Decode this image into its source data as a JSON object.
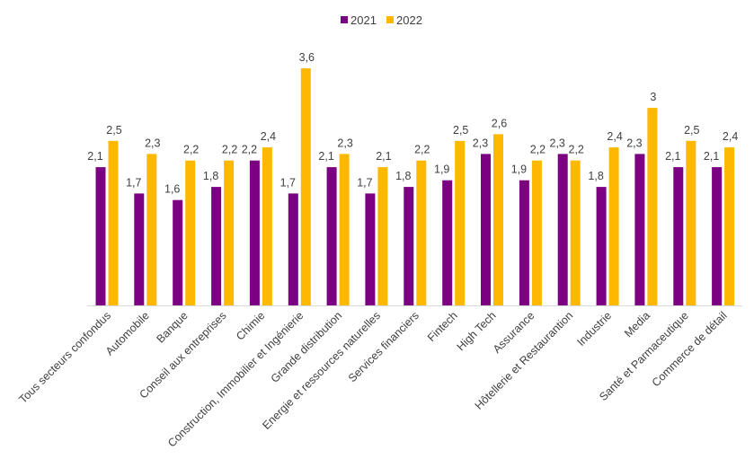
{
  "chart_data": {
    "type": "bar",
    "title": "",
    "xlabel": "",
    "ylabel": "",
    "ylim": [
      0,
      3.6
    ],
    "grid": false,
    "legend_position": "top-center",
    "decimal_separator": ",",
    "categories": [
      "Tous secteurs confondus",
      "Automobile",
      "Banque",
      "Conseil aux entreprises",
      "Chimie",
      "Construction, Immobilier et Ingénierie",
      "Grande distribution",
      "Energie et ressources naturelles",
      "Services financiers",
      "Fintech",
      "High Tech",
      "Assurance",
      "Hôtellerie et Restaurantion",
      "Industrie",
      "Media",
      "Santé et Parmaceutique",
      "Commerce de détail"
    ],
    "series": [
      {
        "name": "2021",
        "color": "#7B0082",
        "values": [
          2.1,
          1.7,
          1.6,
          1.8,
          2.2,
          1.7,
          2.1,
          1.7,
          1.8,
          1.9,
          2.3,
          1.9,
          2.3,
          1.8,
          2.3,
          2.1,
          2.1
        ]
      },
      {
        "name": "2022",
        "color": "#FFB800",
        "values": [
          2.5,
          2.3,
          2.2,
          2.2,
          2.4,
          3.6,
          2.3,
          2.1,
          2.2,
          2.5,
          2.6,
          2.2,
          2.2,
          2.4,
          3.0,
          2.5,
          2.4
        ]
      }
    ]
  },
  "legend": {
    "items": [
      {
        "label": "2021",
        "color": "#7B0082"
      },
      {
        "label": "2022",
        "color": "#FFB800"
      }
    ]
  },
  "colors": {
    "axis": "#D9D9D9",
    "text": "#404040"
  }
}
